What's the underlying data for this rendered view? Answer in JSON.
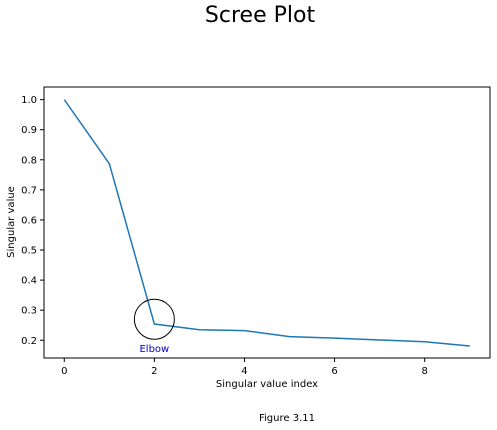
{
  "chart_data": {
    "type": "line",
    "title": "Scree Plot",
    "xlabel": "Singular value index",
    "ylabel": "Singular value",
    "x": [
      0,
      1,
      2,
      3,
      4,
      5,
      6,
      7,
      8,
      9
    ],
    "series": [
      {
        "values": [
          1.0,
          0.787,
          0.254,
          0.235,
          0.232,
          0.212,
          0.207,
          0.201,
          0.195,
          0.181
        ],
        "color": "#1f77b4"
      }
    ],
    "xlim": [
      -0.45,
      9.45
    ],
    "ylim": [
      0.141,
      1.042
    ],
    "xticks": [
      0,
      2,
      4,
      6,
      8
    ],
    "yticks": [
      0.2,
      0.3,
      0.4,
      0.5,
      0.6,
      0.7,
      0.8,
      0.9,
      1.0
    ],
    "xtick_labels": [
      "0",
      "2",
      "4",
      "6",
      "8"
    ],
    "ytick_labels": [
      "0.2",
      "0.3",
      "0.4",
      "0.5",
      "0.6",
      "0.7",
      "0.8",
      "0.9",
      "1.0"
    ],
    "grid": false,
    "annotations": [
      {
        "text": "Elbow",
        "x": 2,
        "y": 0.27,
        "shape": "circle",
        "color": "#0000cc"
      }
    ]
  },
  "caption": "Figure 3.11"
}
